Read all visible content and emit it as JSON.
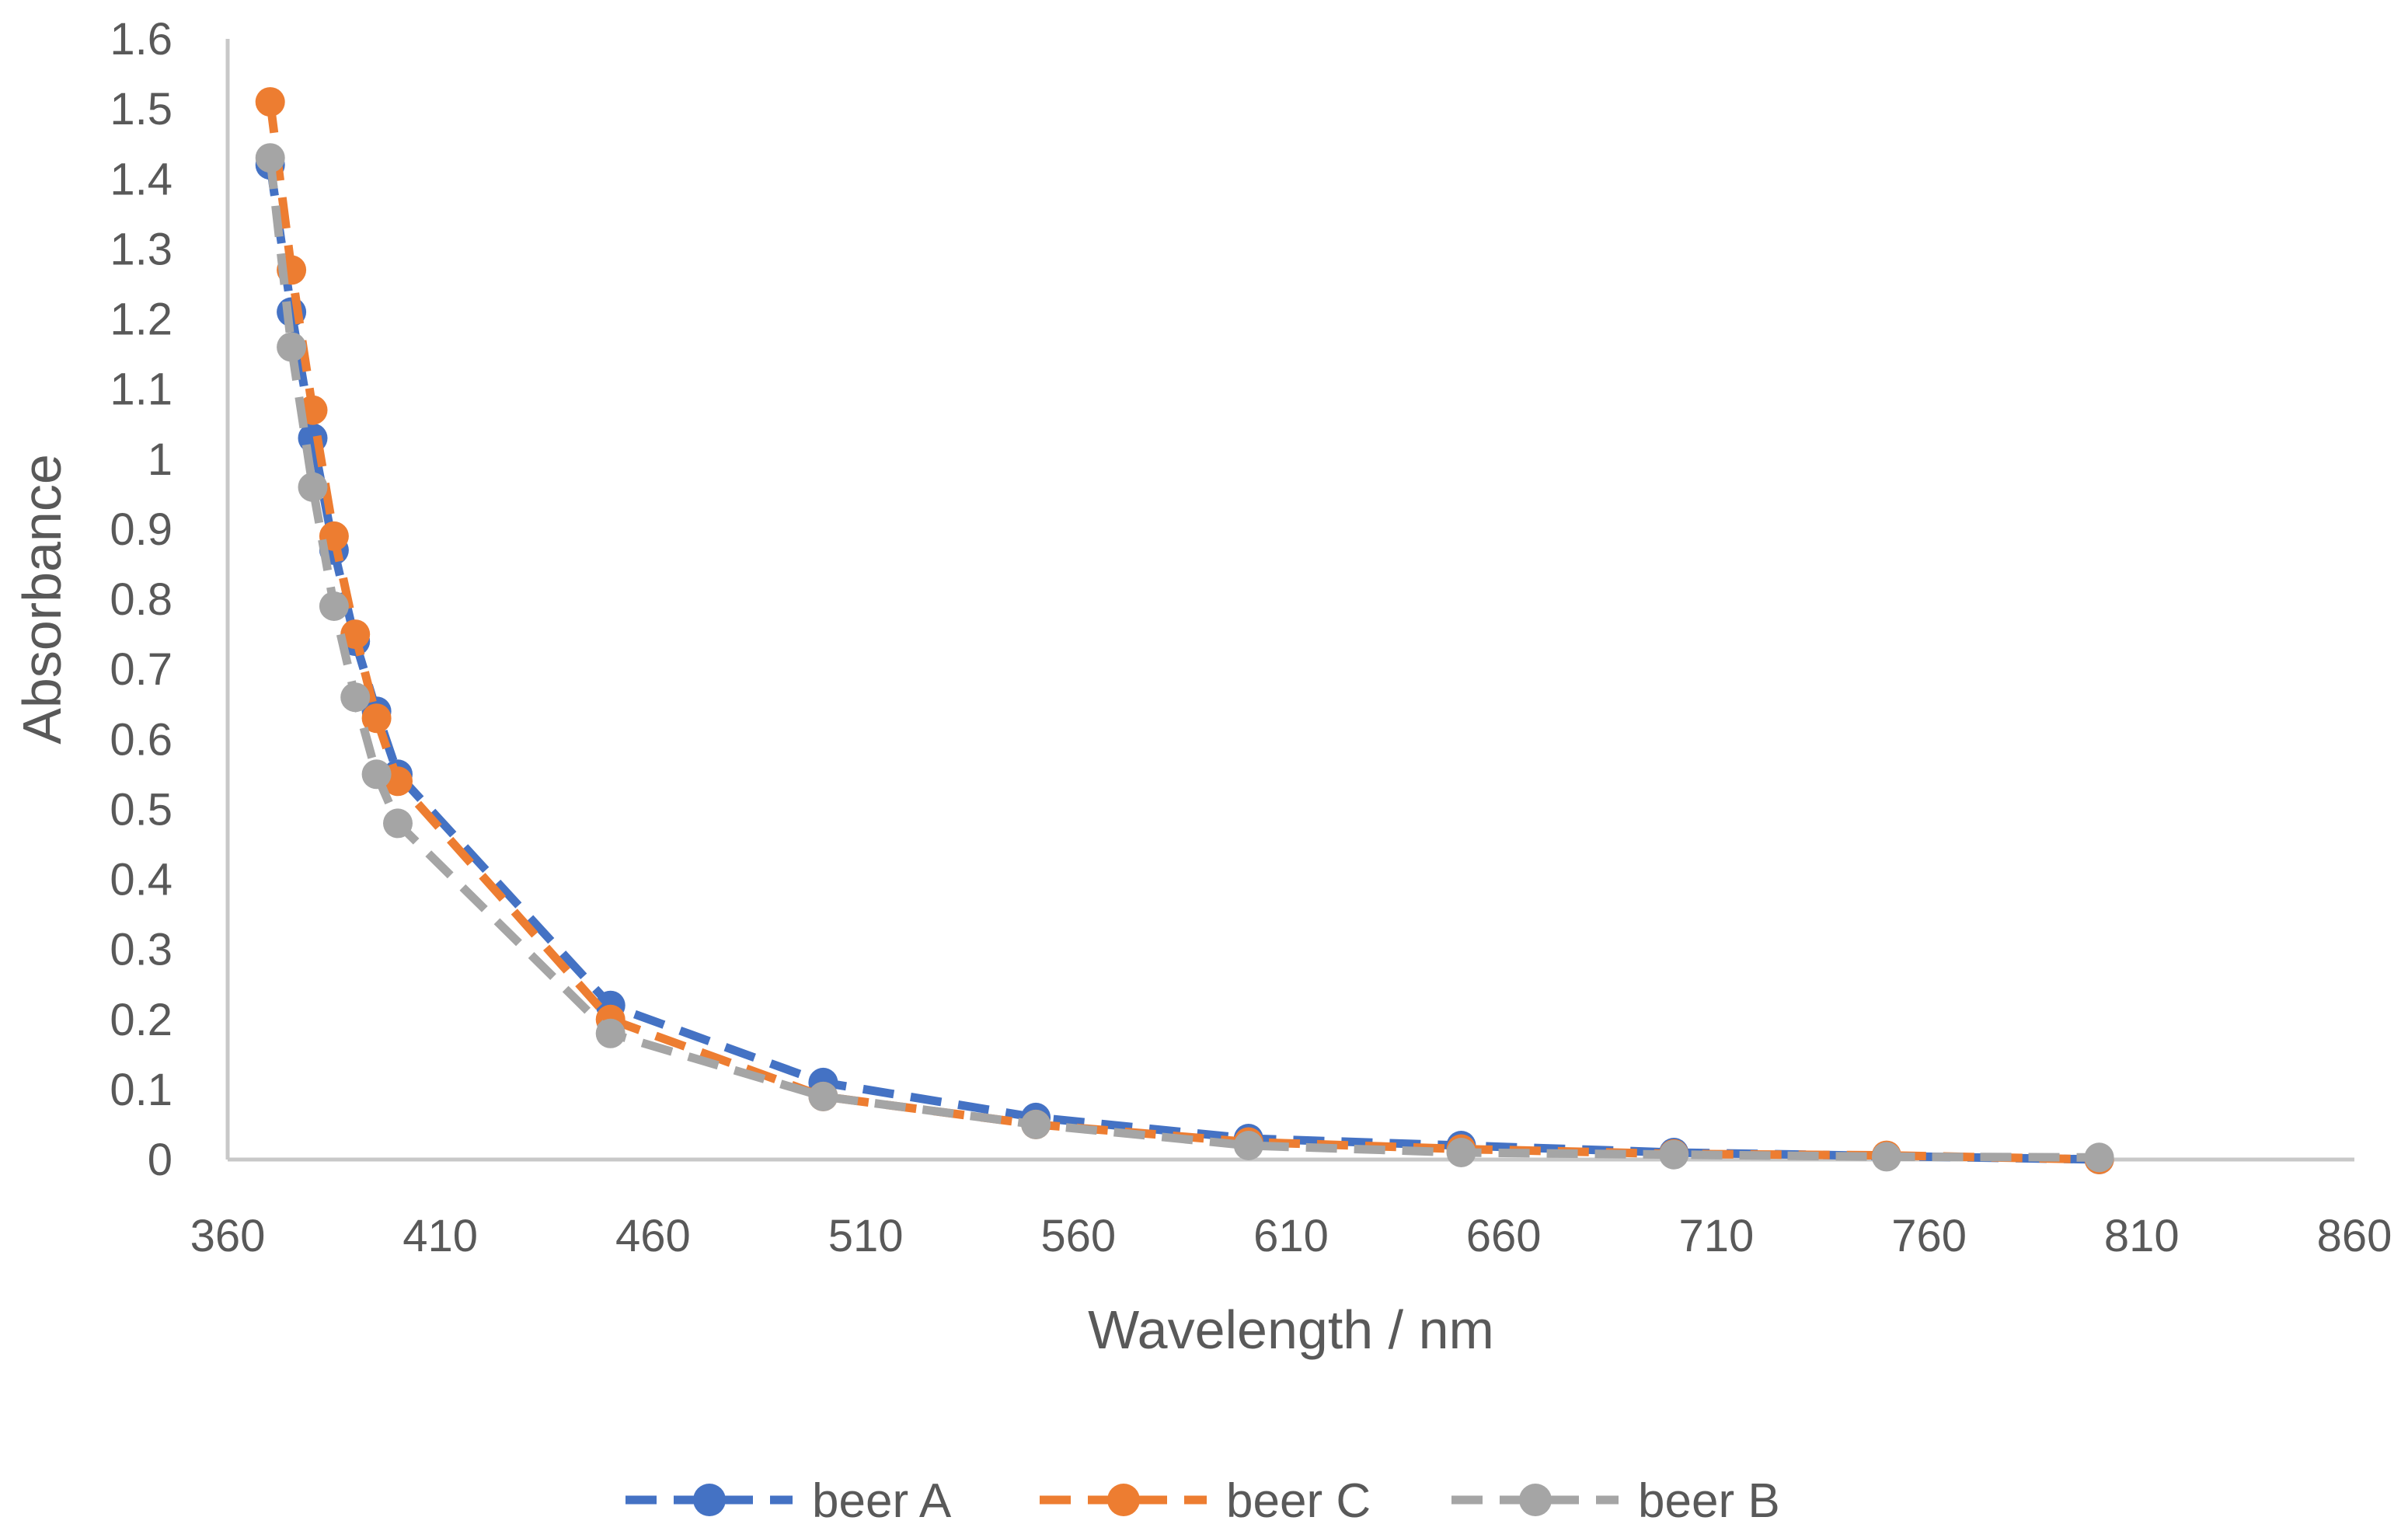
{
  "chart_data": {
    "type": "line",
    "title": "",
    "xlabel": "Wavelength / nm",
    "ylabel": "Absorbance",
    "xlim": [
      360,
      860
    ],
    "ylim": [
      0,
      1.6
    ],
    "xticks": [
      360,
      410,
      460,
      510,
      560,
      610,
      660,
      710,
      760,
      810,
      860
    ],
    "yticks": [
      0,
      0.1,
      0.2,
      0.3,
      0.4,
      0.5,
      0.6,
      0.7,
      0.8,
      0.9,
      1,
      1.1,
      1.2,
      1.3,
      1.4,
      1.5,
      1.6
    ],
    "grid": false,
    "legend_position": "bottom",
    "series": [
      {
        "name": "beer A",
        "color": "#4472C4",
        "x": [
          370,
          375,
          380,
          385,
          390,
          395,
          400,
          450,
          500,
          550,
          600,
          650,
          700,
          750,
          800
        ],
        "y": [
          1.42,
          1.21,
          1.03,
          0.87,
          0.74,
          0.64,
          0.55,
          0.22,
          0.11,
          0.06,
          0.03,
          0.02,
          0.01,
          0.005,
          0.0
        ]
      },
      {
        "name": "beer C",
        "color": "#ED7D31",
        "x": [
          370,
          375,
          380,
          385,
          390,
          395,
          400,
          450,
          500,
          550,
          600,
          650,
          700,
          750,
          800
        ],
        "y": [
          1.51,
          1.27,
          1.07,
          0.89,
          0.75,
          0.63,
          0.54,
          0.2,
          0.09,
          0.05,
          0.025,
          0.015,
          0.008,
          0.006,
          0.0
        ]
      },
      {
        "name": "beer B",
        "color": "#A5A5A5",
        "x": [
          370,
          375,
          380,
          385,
          390,
          395,
          400,
          450,
          500,
          550,
          600,
          650,
          700,
          750,
          800
        ],
        "y": [
          1.43,
          1.16,
          0.96,
          0.79,
          0.66,
          0.55,
          0.48,
          0.18,
          0.09,
          0.05,
          0.02,
          0.01,
          0.007,
          0.004,
          0.003
        ]
      }
    ]
  }
}
